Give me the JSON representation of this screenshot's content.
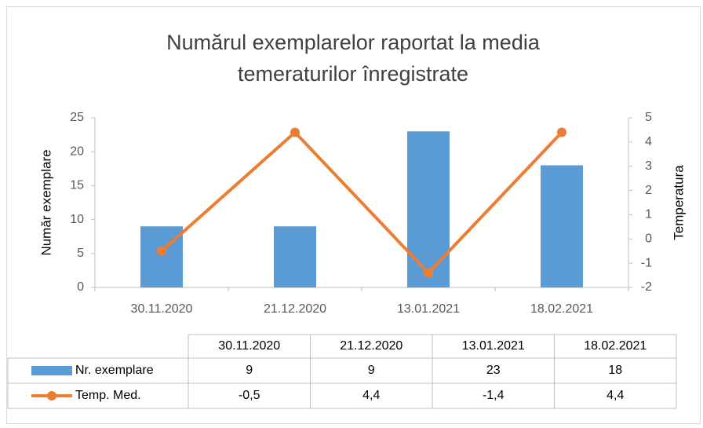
{
  "chart_data": {
    "type": "bar_line",
    "title": "Numărul exemplarelor raportat la media temeraturilor înregistrate",
    "y_label": "Număr exemplare",
    "y2_label": "Temperatura",
    "categories": [
      "30.11.2020",
      "21.12.2020",
      "13.01.2021",
      "18.02.2021"
    ],
    "series": [
      {
        "name": "Nr. exemplare",
        "type": "bar",
        "color": "#5b9bd5",
        "values": [
          9,
          9,
          23,
          18
        ]
      },
      {
        "name": "Temp. Med.",
        "type": "line",
        "axis": "y2",
        "color": "#ed7d31",
        "values": [
          -0.5,
          4.4,
          -1.4,
          4.4
        ],
        "value_labels": [
          "-0,5",
          "4,4",
          "-1,4",
          "4,4"
        ]
      }
    ],
    "ylim": [
      0,
      25
    ],
    "yticks": [
      0,
      5,
      10,
      15,
      20,
      25
    ],
    "y2lim": [
      -2,
      5
    ],
    "y2ticks": [
      -2,
      -1,
      0,
      1,
      2,
      3,
      4,
      5
    ],
    "grid": false,
    "data_table": true
  }
}
